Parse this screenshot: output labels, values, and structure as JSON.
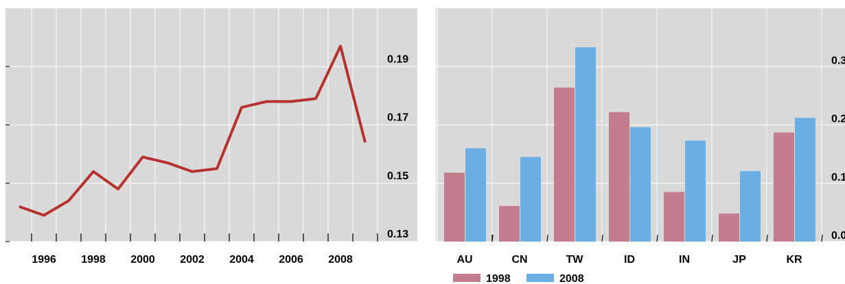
{
  "chart_data": [
    {
      "type": "line",
      "x": [
        "1995",
        "1996",
        "1997",
        "1998",
        "1999",
        "2000",
        "2001",
        "2002",
        "2003",
        "2004",
        "2005",
        "2006",
        "2007",
        "2008",
        "2009"
      ],
      "x_tick_labels": [
        "1996",
        "1998",
        "2000",
        "2002",
        "2004",
        "2006",
        "2008"
      ],
      "y_tick_labels": [
        "0.19",
        "0.17",
        "0.15",
        "0.13"
      ],
      "ylim": [
        0.13,
        0.21
      ],
      "series": [
        {
          "values": [
            0.142,
            0.139,
            0.144,
            0.154,
            0.148,
            0.159,
            0.157,
            0.154,
            0.155,
            0.176,
            0.178,
            0.178,
            0.179,
            0.197,
            0.164
          ]
        }
      ],
      "grid": true,
      "colors": {
        "line": "#b5322e",
        "plot_bg": "#d9d9d9",
        "grid": "#ffffff"
      }
    },
    {
      "type": "bar",
      "categories": [
        "AU",
        "CN",
        "TW",
        "ID",
        "IN",
        "JP",
        "KR"
      ],
      "y_tick_labels": [
        "0.3",
        "0.2",
        "0.1",
        "0.0"
      ],
      "ylim": [
        0.0,
        0.4
      ],
      "series": [
        {
          "name": "1998",
          "values": [
            0.118,
            0.061,
            0.264,
            0.222,
            0.085,
            0.048,
            0.187
          ],
          "color": "#c47d8e"
        },
        {
          "name": "2008",
          "values": [
            0.16,
            0.145,
            0.333,
            0.196,
            0.173,
            0.121,
            0.212
          ],
          "color": "#6aaee3"
        }
      ],
      "legend": {
        "position": "bottom-left",
        "entries": [
          "1998",
          "2008"
        ]
      },
      "grid": true,
      "colors": {
        "plot_bg": "#d9d9d9",
        "grid": "#ffffff"
      }
    }
  ]
}
